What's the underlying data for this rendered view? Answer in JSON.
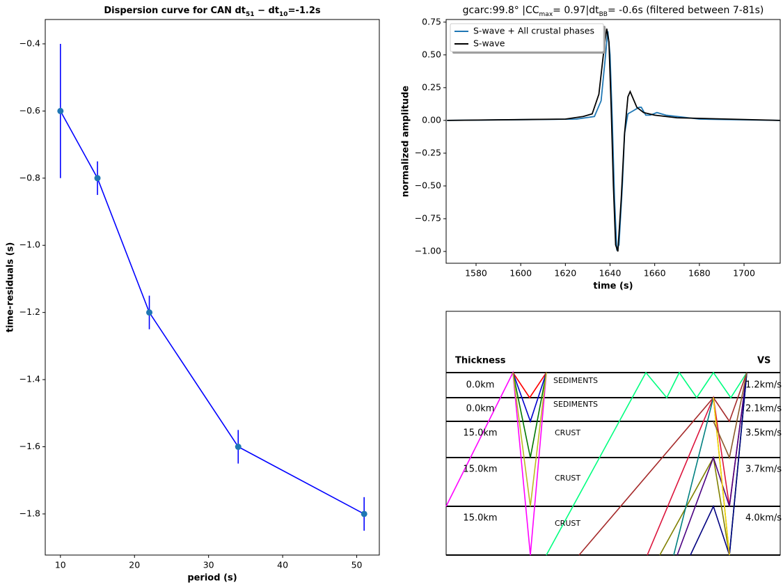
{
  "chart_data": [
    {
      "type": "errorbar",
      "title_parts": [
        "Dispersion curve for CAN dt",
        "51",
        " − dt",
        "10",
        "=-1.2s"
      ],
      "xlabel": "period (s)",
      "ylabel": "time-residuals (s)",
      "x": [
        10,
        15,
        22,
        34,
        51
      ],
      "values": [
        -0.6,
        -0.8,
        -1.2,
        -1.6,
        -1.8
      ],
      "errors": [
        0.2,
        0.05,
        0.05,
        0.05,
        0.05
      ],
      "color": "#0000ff",
      "marker_color": "#1f77b4",
      "xlim": [
        7.95,
        53.05
      ],
      "ylim": [
        -1.9225,
        -0.3275
      ],
      "xticks": [
        10,
        20,
        30,
        40,
        50
      ],
      "yticks": [
        {
          "value": -1.8,
          "label": "−1.8"
        },
        {
          "value": -1.6,
          "label": "−1.6"
        },
        {
          "value": -1.4,
          "label": "−1.4"
        },
        {
          "value": -1.2,
          "label": "−1.2"
        },
        {
          "value": -1.0,
          "label": "−1.0"
        },
        {
          "value": -0.8,
          "label": "−0.8"
        },
        {
          "value": -0.6,
          "label": "−0.6"
        },
        {
          "value": -0.4,
          "label": "−0.4"
        }
      ]
    },
    {
      "type": "line",
      "title_parts": [
        "gcarc:99.8° |CC",
        "max",
        "= 0.97|dt",
        "BB",
        "= -0.6s (filtered between 7-81s)"
      ],
      "xlabel": "time (s)",
      "ylabel": "normalized amplitude",
      "legend": "upper left",
      "series": [
        {
          "name": "S-wave + All crustal phases",
          "color": "#1f77b4",
          "x": [
            1567,
            1625,
            1633,
            1636,
            1638,
            1639,
            1640,
            1641,
            1642,
            1643,
            1644,
            1645.5,
            1646.5,
            1648,
            1650,
            1653,
            1654,
            1656,
            1658,
            1661,
            1665,
            1680,
            1716
          ],
          "values": [
            0,
            0.01,
            0.03,
            0.15,
            0.5,
            0.68,
            0.5,
            0,
            -0.6,
            -0.98,
            -0.95,
            -0.5,
            -0.1,
            0.05,
            0.07,
            0.1,
            0.1,
            0.04,
            0.04,
            0.06,
            0.04,
            0.01,
            0
          ]
        },
        {
          "name": "S-wave",
          "color": "#000000",
          "x": [
            1567,
            1620,
            1628,
            1632,
            1635,
            1637,
            1638.5,
            1639.5,
            1640.5,
            1641.5,
            1642.5,
            1643.5,
            1645,
            1646.5,
            1648,
            1649,
            1650,
            1652,
            1655,
            1660,
            1670,
            1716
          ],
          "values": [
            0,
            0.01,
            0.03,
            0.05,
            0.2,
            0.5,
            0.7,
            0.6,
            0.1,
            -0.5,
            -0.95,
            -1.0,
            -0.6,
            -0.1,
            0.18,
            0.22,
            0.18,
            0.1,
            0.06,
            0.04,
            0.02,
            0
          ]
        }
      ],
      "xlim": [
        1566.6,
        1716.2
      ],
      "ylim": [
        -1.09,
        0.77
      ],
      "xticks": [
        1580,
        1600,
        1620,
        1640,
        1660,
        1680,
        1700
      ],
      "yticks": [
        {
          "value": -1.0,
          "label": "−1.00"
        },
        {
          "value": -0.75,
          "label": "−0.75"
        },
        {
          "value": -0.5,
          "label": "−0.50"
        },
        {
          "value": -0.25,
          "label": "−0.25"
        },
        {
          "value": 0,
          "label": "0.00"
        },
        {
          "value": 0.25,
          "label": "0.25"
        },
        {
          "value": 0.5,
          "label": "0.50"
        },
        0.75
      ]
    }
  ],
  "layer_diagram": {
    "thickness_header": "Thickness",
    "vs_header": "VS",
    "layers": [
      {
        "thickness": "0.0km",
        "name": "SEDIMENTS",
        "vs": "1.2km/s"
      },
      {
        "thickness": "0.0km",
        "name": "SEDIMENTS",
        "vs": "2.1km/s"
      },
      {
        "thickness": "15.0km",
        "name": "CRUST",
        "vs": "3.5km/s"
      },
      {
        "thickness": "15.0km",
        "name": "CRUST",
        "vs": "3.7km/s"
      },
      {
        "thickness": "15.0km",
        "name": "CRUST",
        "vs": "4.0km/s"
      }
    ]
  }
}
